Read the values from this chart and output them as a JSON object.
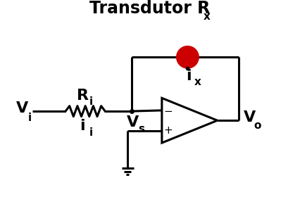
{
  "title": "Transdutor R",
  "title_x": "x",
  "bg_color": "#ffffff",
  "line_color": "#000000",
  "transducer_color": "#cc0000",
  "lw": 2.2,
  "fig_w": 4.26,
  "fig_h": 2.9,
  "labels": {
    "Vi": "V",
    "Vi_sub": "i",
    "Ri": "R",
    "Ri_sub": "i",
    "ii": "i",
    "ii_sub": "i",
    "Vs": "V",
    "Vs_sub": "s",
    "ix": "i",
    "ix_sub": "x",
    "Vo": "V",
    "Vo_sub": "o"
  },
  "fs_main": 16,
  "fs_sub": 11,
  "fs_title": 17,
  "fs_title_sub": 11
}
